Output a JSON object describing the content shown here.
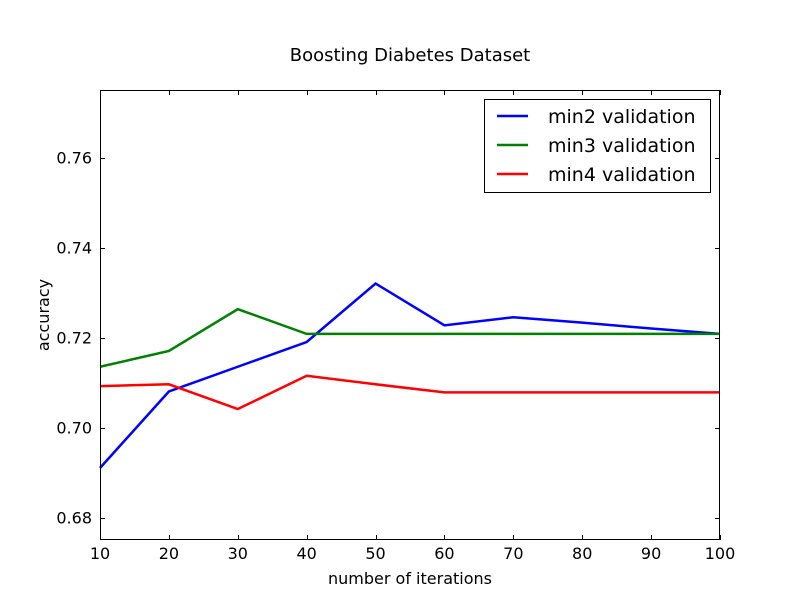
{
  "chart_data": {
    "type": "line",
    "title": "Boosting Diabetes Dataset",
    "xlabel": "number of iterations",
    "ylabel": "accuracy",
    "xlim": [
      10,
      100
    ],
    "ylim": [
      0.675,
      0.775
    ],
    "xticks": [
      10,
      20,
      30,
      40,
      50,
      60,
      70,
      80,
      90,
      100
    ],
    "xtick_labels": [
      "10",
      "20",
      "30",
      "40",
      "50",
      "60",
      "70",
      "80",
      "90",
      "100"
    ],
    "yticks": [
      0.68,
      0.7,
      0.72,
      0.74,
      0.76
    ],
    "ytick_labels": [
      "0.68",
      "0.70",
      "0.72",
      "0.74",
      "0.76"
    ],
    "grid": false,
    "legend": "top-right",
    "x": [
      10,
      20,
      30,
      40,
      50,
      60,
      70,
      80,
      90,
      100
    ],
    "series": [
      {
        "name": "min2 validation",
        "color": "#0000ff",
        "values": [
          0.691,
          0.708,
          0.7135,
          0.719,
          0.732,
          0.7227,
          0.7245,
          0.7233,
          0.722,
          0.7208
        ]
      },
      {
        "name": "min3 validation",
        "color": "#008000",
        "values": [
          0.7135,
          0.717,
          0.7263,
          0.7208,
          0.7208,
          0.7208,
          0.7208,
          0.7208,
          0.7208,
          0.7208
        ]
      },
      {
        "name": "min4 validation",
        "color": "#ff0000",
        "values": [
          0.7092,
          0.7096,
          0.7041,
          0.7115,
          0.7096,
          0.7078,
          0.7078,
          0.7078,
          0.7078,
          0.7078
        ]
      }
    ]
  }
}
